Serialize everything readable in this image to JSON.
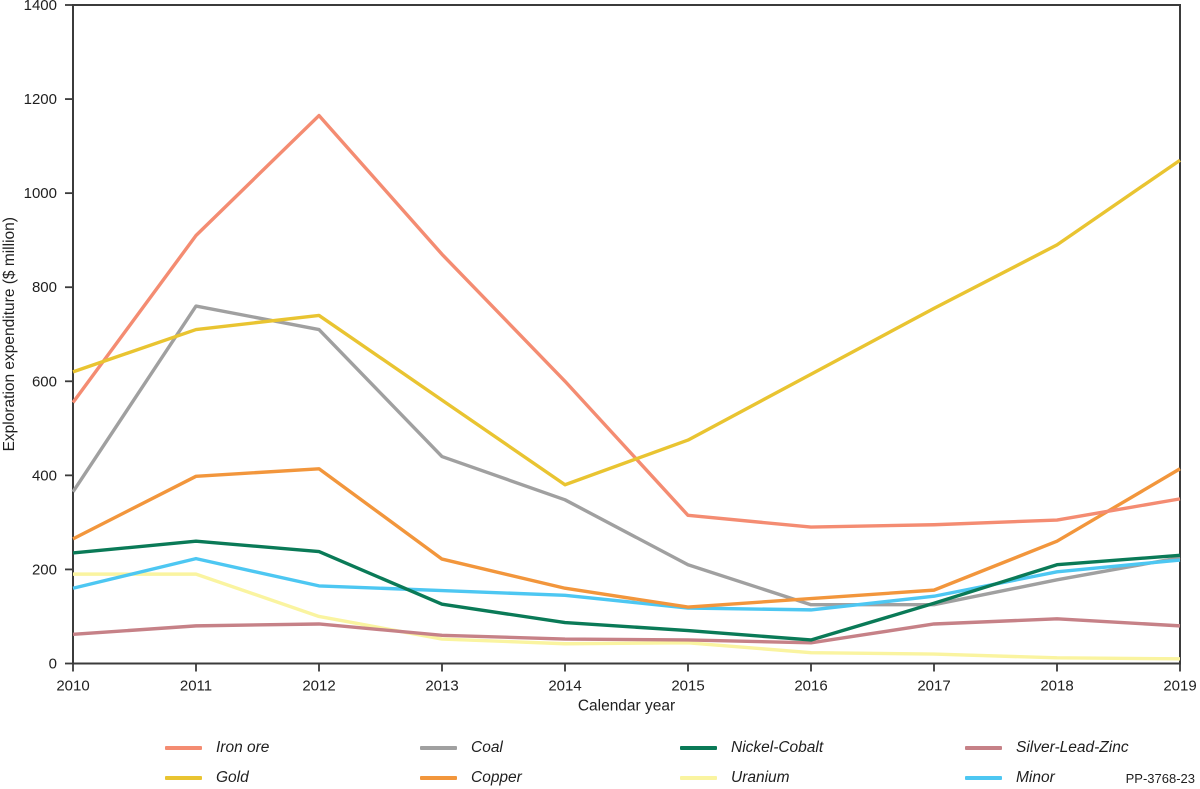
{
  "legend": {
    "rows": [
      [
        {
          "label": "Iron ore",
          "color": "#F48C72"
        },
        {
          "label": "Coal",
          "color": "#A0A0A0"
        },
        {
          "label": "Nickel-Cobalt",
          "color": "#0A7A57"
        },
        {
          "label": "Silver-Lead-Zinc",
          "color": "#C68187"
        }
      ],
      [
        {
          "label": "Gold",
          "color": "#E9C431"
        },
        {
          "label": "Copper",
          "color": "#F2963C"
        },
        {
          "label": "Uranium",
          "color": "#FAF4A0"
        },
        {
          "label": "Minor",
          "color": "#4DC7F2"
        }
      ]
    ],
    "figure_code": "PP-3768-23"
  },
  "chart_data": {
    "type": "line",
    "title": "",
    "xlabel": "Calendar year",
    "ylabel": "Exploration expenditure ($ million)",
    "x": [
      2010,
      2011,
      2012,
      2013,
      2014,
      2015,
      2016,
      2017,
      2018,
      2019
    ],
    "ylim": [
      0,
      1400
    ],
    "y_ticks": [
      0,
      200,
      400,
      600,
      800,
      1000,
      1200,
      1400
    ],
    "grid": false,
    "legend_position": "bottom",
    "series": [
      {
        "name": "Uranium",
        "color": "#FAF4A0",
        "values": [
          190,
          190,
          100,
          52,
          42,
          44,
          23,
          20,
          12,
          10
        ]
      },
      {
        "name": "Silver-Lead-Zinc",
        "color": "#C68187",
        "values": [
          62,
          80,
          84,
          60,
          52,
          50,
          44,
          84,
          95,
          80
        ]
      },
      {
        "name": "Coal",
        "color": "#A0A0A0",
        "values": [
          365,
          760,
          710,
          440,
          348,
          210,
          125,
          125,
          178,
          225
        ]
      },
      {
        "name": "Minor",
        "color": "#4DC7F2",
        "values": [
          160,
          223,
          165,
          155,
          145,
          118,
          114,
          143,
          195,
          220
        ]
      },
      {
        "name": "Copper",
        "color": "#F2963C",
        "values": [
          265,
          398,
          414,
          222,
          160,
          120,
          138,
          156,
          260,
          414
        ]
      },
      {
        "name": "Nickel-Cobalt",
        "color": "#0A7A57",
        "values": [
          235,
          260,
          238,
          126,
          87,
          70,
          50,
          128,
          210,
          230
        ]
      },
      {
        "name": "Iron ore",
        "color": "#F48C72",
        "values": [
          555,
          910,
          1165,
          870,
          600,
          315,
          290,
          295,
          305,
          350
        ]
      },
      {
        "name": "Gold",
        "color": "#E9C431",
        "values": [
          620,
          710,
          740,
          560,
          380,
          475,
          615,
          755,
          890,
          1070
        ]
      }
    ]
  }
}
